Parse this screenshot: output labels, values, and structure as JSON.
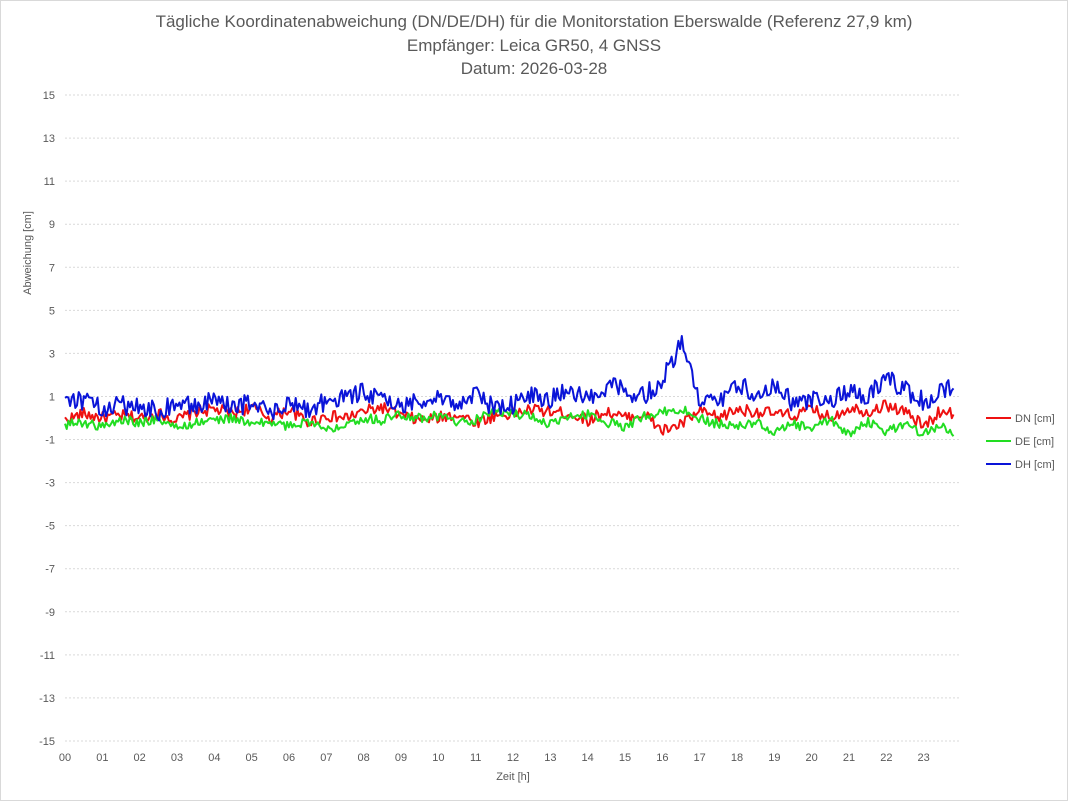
{
  "title": {
    "line1": "Tägliche Koordinatenabweichung (DN/DE/DH) für die Monitorstation Eberswalde (Referenz 27,9 km)",
    "line2": "Empfänger: Leica GR50, 4 GNSS",
    "line3": "Datum: 2026-03-28"
  },
  "chart_data": {
    "type": "line",
    "title": "Tägliche Koordinatenabweichung (DN/DE/DH) für die Monitorstation Eberswalde (Referenz 27,9 km)",
    "subtitle": [
      "Empfänger: Leica GR50, 4 GNSS",
      "Datum: 2026-03-28"
    ],
    "xlabel": "Zeit [h]",
    "ylabel": "Abweichung [cm]",
    "xlim": [
      0,
      24
    ],
    "ylim": [
      -15,
      15
    ],
    "x_ticks": [
      "00",
      "01",
      "02",
      "03",
      "04",
      "05",
      "06",
      "07",
      "08",
      "09",
      "10",
      "11",
      "12",
      "13",
      "14",
      "15",
      "16",
      "17",
      "18",
      "19",
      "20",
      "21",
      "22",
      "23"
    ],
    "y_ticks": [
      15,
      13,
      11,
      9,
      7,
      5,
      3,
      1,
      -1,
      -3,
      -5,
      -7,
      -9,
      -11,
      -13,
      -15
    ],
    "grid": "horizontal dotted",
    "legend_position": "right",
    "x_hours": [
      0,
      0.5,
      1,
      1.5,
      2,
      2.5,
      3,
      3.5,
      4,
      4.5,
      5,
      5.5,
      6,
      6.5,
      7,
      7.5,
      8,
      8.5,
      9,
      9.5,
      10,
      10.5,
      11,
      11.5,
      12,
      12.5,
      13,
      13.5,
      14,
      14.5,
      15,
      15.5,
      16,
      16.5,
      17,
      17.5,
      18,
      18.5,
      19,
      19.5,
      20,
      20.5,
      21,
      21.5,
      22,
      22.5,
      23,
      23.5,
      23.8
    ],
    "series": [
      {
        "name": "DN [cm]",
        "color": "#ee1111",
        "values": [
          -0.1,
          0.2,
          0.0,
          0.1,
          0.0,
          0.2,
          -0.1,
          0.3,
          0.4,
          0.2,
          0.5,
          0.0,
          0.4,
          -0.2,
          0.1,
          0.0,
          0.3,
          0.5,
          0.1,
          -0.1,
          0.0,
          0.2,
          -0.2,
          0.1,
          0.2,
          0.4,
          0.3,
          0.2,
          -0.1,
          0.3,
          0.0,
          0.2,
          -0.6,
          -0.3,
          0.3,
          0.0,
          0.4,
          0.3,
          0.2,
          0.1,
          0.4,
          0.0,
          0.5,
          0.3,
          0.6,
          0.3,
          -0.4,
          0.4,
          0.2
        ]
      },
      {
        "name": "DE [cm]",
        "color": "#22dd22",
        "values": [
          -0.3,
          -0.2,
          -0.4,
          -0.1,
          -0.2,
          0.0,
          -0.5,
          -0.2,
          -0.1,
          0.0,
          -0.3,
          -0.2,
          -0.4,
          -0.1,
          -0.6,
          -0.2,
          0.0,
          -0.1,
          0.2,
          0.0,
          0.1,
          -0.2,
          -0.1,
          0.3,
          0.2,
          0.1,
          -0.3,
          0.0,
          0.2,
          -0.2,
          -0.4,
          0.1,
          0.3,
          0.4,
          0.0,
          -0.3,
          -0.4,
          -0.2,
          -0.7,
          -0.3,
          -0.5,
          -0.1,
          -0.7,
          -0.2,
          -0.6,
          -0.3,
          -0.7,
          -0.3,
          -0.7
        ]
      },
      {
        "name": "DH [cm]",
        "color": "#0a14d8",
        "values": [
          1.0,
          0.8,
          0.4,
          0.6,
          0.5,
          0.3,
          0.7,
          0.5,
          0.9,
          0.4,
          0.8,
          0.2,
          0.6,
          0.4,
          0.8,
          0.9,
          1.3,
          0.8,
          0.5,
          0.9,
          1.0,
          0.6,
          1.2,
          0.4,
          0.6,
          1.1,
          0.9,
          1.3,
          0.8,
          1.5,
          1.3,
          1.0,
          1.8,
          3.5,
          0.7,
          0.8,
          1.5,
          1.2,
          1.6,
          0.7,
          0.9,
          0.6,
          1.4,
          1.0,
          1.9,
          1.3,
          0.8,
          1.2,
          1.5
        ]
      }
    ]
  }
}
